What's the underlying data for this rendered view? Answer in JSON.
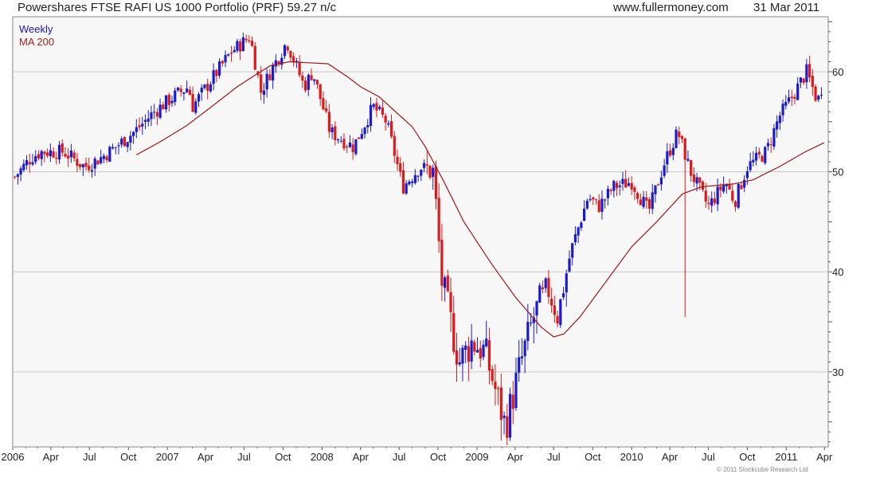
{
  "header": {
    "title": "Powershares FTSE RAFI US 1000 Portfolio (PRF) 59.27 n/c",
    "source": "www.fullermoney.com",
    "date": "31 Mar 2011"
  },
  "legend": {
    "weekly": "Weekly",
    "ma": "MA 200"
  },
  "footer": {
    "copyright": "© 2011 Stockcube Research Ltd"
  },
  "colors": {
    "up": "#1a1ad0",
    "down": "#dd1a1a",
    "ma": "#a01818",
    "grid": "#c8c8c8",
    "background": "#f7f7f7"
  },
  "chart_data": {
    "type": "candlestick",
    "title": "Powershares FTSE RAFI US 1000 Portfolio (PRF) 59.27 n/c",
    "ylim": [
      22.5,
      65.5
    ],
    "y_ticks": [
      30,
      40,
      50,
      60
    ],
    "x_tick_labels": [
      "2006",
      "Apr",
      "Jul",
      "Oct",
      "2007",
      "Apr",
      "Jul",
      "Oct",
      "2008",
      "Apr",
      "Jul",
      "Oct",
      "2009",
      "Apr",
      "Jul",
      "Oct",
      "2010",
      "Apr",
      "Jul",
      "Oct",
      "2011",
      "Apr"
    ],
    "grid": true,
    "series": [
      {
        "name": "Weekly",
        "kind": "ohlc-weekly",
        "anchors_date_close": [
          [
            "2006-01-06",
            49.5
          ],
          [
            "2006-02-15",
            51.5
          ],
          [
            "2006-03-10",
            52
          ],
          [
            "2006-05-01",
            52
          ],
          [
            "2006-06-20",
            50.5
          ],
          [
            "2006-08-01",
            51.5
          ],
          [
            "2006-09-01",
            52.5
          ],
          [
            "2006-10-15",
            54
          ],
          [
            "2006-12-01",
            56
          ],
          [
            "2007-01-15",
            57.5
          ],
          [
            "2007-02-20",
            58.5
          ],
          [
            "2007-03-01",
            56.5
          ],
          [
            "2007-04-20",
            59.5
          ],
          [
            "2007-06-01",
            62
          ],
          [
            "2007-07-15",
            63.5
          ],
          [
            "2007-08-10",
            58
          ],
          [
            "2007-09-01",
            60
          ],
          [
            "2007-10-10",
            63
          ],
          [
            "2007-11-20",
            58.5
          ],
          [
            "2007-12-10",
            60
          ],
          [
            "2008-01-20",
            54
          ],
          [
            "2008-03-15",
            52.5
          ],
          [
            "2008-05-01",
            56.5
          ],
          [
            "2008-06-01",
            55
          ],
          [
            "2008-07-10",
            48.5
          ],
          [
            "2008-08-20",
            50.5
          ],
          [
            "2008-09-20",
            50
          ],
          [
            "2008-10-10",
            39
          ],
          [
            "2008-11-20",
            31
          ],
          [
            "2008-12-20",
            33
          ],
          [
            "2009-01-20",
            32
          ],
          [
            "2009-03-09",
            24.5
          ],
          [
            "2009-04-15",
            31
          ],
          [
            "2009-05-15",
            35.5
          ],
          [
            "2009-06-15",
            38.5
          ],
          [
            "2009-07-10",
            35.5
          ],
          [
            "2009-08-10",
            42
          ],
          [
            "2009-09-20",
            47.5
          ],
          [
            "2009-10-15",
            46.5
          ],
          [
            "2009-11-20",
            48.5
          ],
          [
            "2010-01-01",
            49
          ],
          [
            "2010-02-10",
            46
          ],
          [
            "2010-03-20",
            51
          ],
          [
            "2010-04-20",
            54
          ],
          [
            "2010-05-20",
            50
          ],
          [
            "2010-07-01",
            46.5
          ],
          [
            "2010-08-10",
            49
          ],
          [
            "2010-09-01",
            47
          ],
          [
            "2010-10-01",
            50.5
          ],
          [
            "2010-11-15",
            52
          ],
          [
            "2010-12-15",
            55.5
          ],
          [
            "2011-01-15",
            57.5
          ],
          [
            "2011-02-18",
            60
          ],
          [
            "2011-03-16",
            57
          ],
          [
            "2011-03-31",
            59.27
          ]
        ]
      },
      {
        "name": "MA 200",
        "kind": "moving-average",
        "points_date_value": [
          [
            "2006-10-20",
            51.7
          ],
          [
            "2006-12-15",
            53
          ],
          [
            "2007-02-15",
            54.6
          ],
          [
            "2007-04-15",
            56.5
          ],
          [
            "2007-06-15",
            58.5
          ],
          [
            "2007-08-01",
            59.8
          ],
          [
            "2007-09-01",
            60.6
          ],
          [
            "2007-10-15",
            61
          ],
          [
            "2007-12-01",
            60.9
          ],
          [
            "2008-01-15",
            60.8
          ],
          [
            "2008-03-01",
            59.5
          ],
          [
            "2008-04-01",
            58.5
          ],
          [
            "2008-05-15",
            57.5
          ],
          [
            "2008-06-15",
            56.3
          ],
          [
            "2008-08-01",
            54.5
          ],
          [
            "2008-09-01",
            52.5
          ],
          [
            "2008-10-15",
            49
          ],
          [
            "2008-12-01",
            45
          ],
          [
            "2009-02-01",
            41
          ],
          [
            "2009-04-01",
            37.5
          ],
          [
            "2009-06-01",
            34.5
          ],
          [
            "2009-07-01",
            33.5
          ],
          [
            "2009-07-25",
            33.8
          ],
          [
            "2009-09-01",
            35.5
          ],
          [
            "2009-11-01",
            39
          ],
          [
            "2010-01-01",
            42.5
          ],
          [
            "2010-03-01",
            45
          ],
          [
            "2010-05-01",
            47.8
          ],
          [
            "2010-06-15",
            48.5
          ],
          [
            "2010-09-01",
            48.8
          ],
          [
            "2010-10-15",
            49.2
          ],
          [
            "2010-12-15",
            50.5
          ],
          [
            "2011-02-15",
            52
          ],
          [
            "2011-03-31",
            52.9
          ]
        ]
      }
    ],
    "annotations": [
      {
        "type": "spike-low",
        "date": "2010-05-07",
        "low": 35.5
      }
    ]
  }
}
